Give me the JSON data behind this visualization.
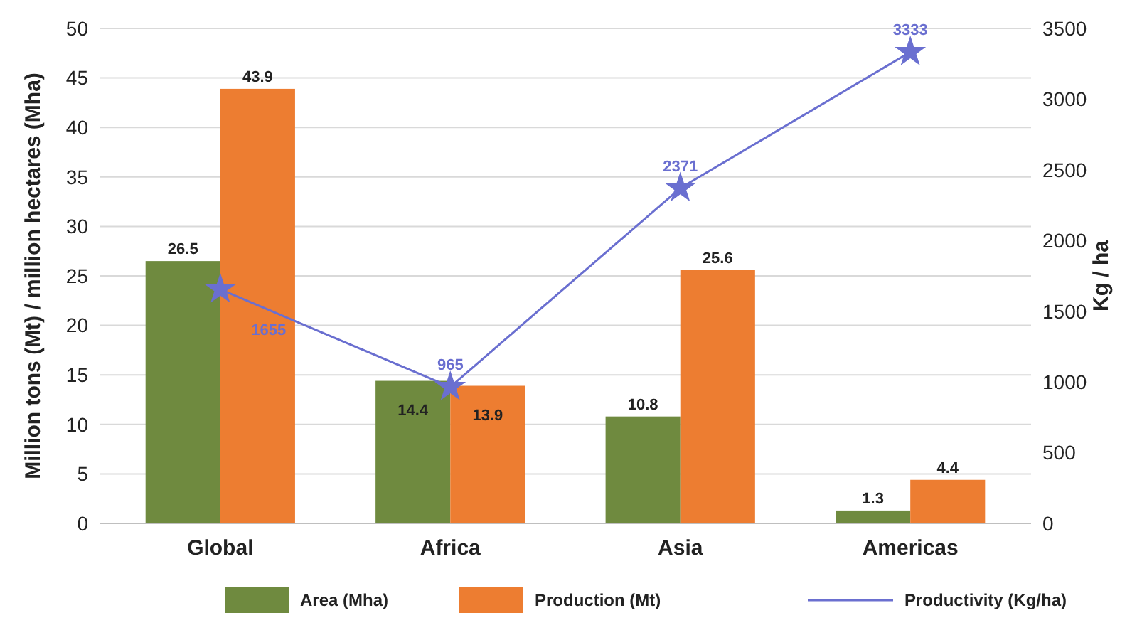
{
  "chart_data": {
    "type": "bar",
    "categories": [
      "Global",
      "Africa",
      "Asia",
      "Americas"
    ],
    "series": [
      {
        "name": "Area (Mha)",
        "color": "#6f8a3f",
        "values": [
          26.5,
          14.4,
          10.8,
          1.3
        ]
      },
      {
        "name": "Production (Mt)",
        "color": "#ed7d31",
        "values": [
          43.9,
          13.9,
          25.6,
          4.4
        ]
      },
      {
        "name": "Productivity (Kg/ha)",
        "type": "line",
        "axis": "y2",
        "color": "#6a6fd0",
        "values": [
          1655,
          965,
          2371,
          3333
        ],
        "marker": "star"
      }
    ],
    "ylabel": "Million tons (Mt) / million hectares (Mha)",
    "y2label": "Kg / ha",
    "ylim": [
      0,
      50
    ],
    "yticks": [
      0,
      5,
      10,
      15,
      20,
      25,
      30,
      35,
      40,
      45,
      50
    ],
    "y2lim": [
      0,
      3500
    ],
    "y2ticks": [
      0,
      500,
      1000,
      1500,
      2000,
      2500,
      3000,
      3500
    ],
    "grid": "y",
    "legend": "bottom",
    "data_labels": true
  }
}
